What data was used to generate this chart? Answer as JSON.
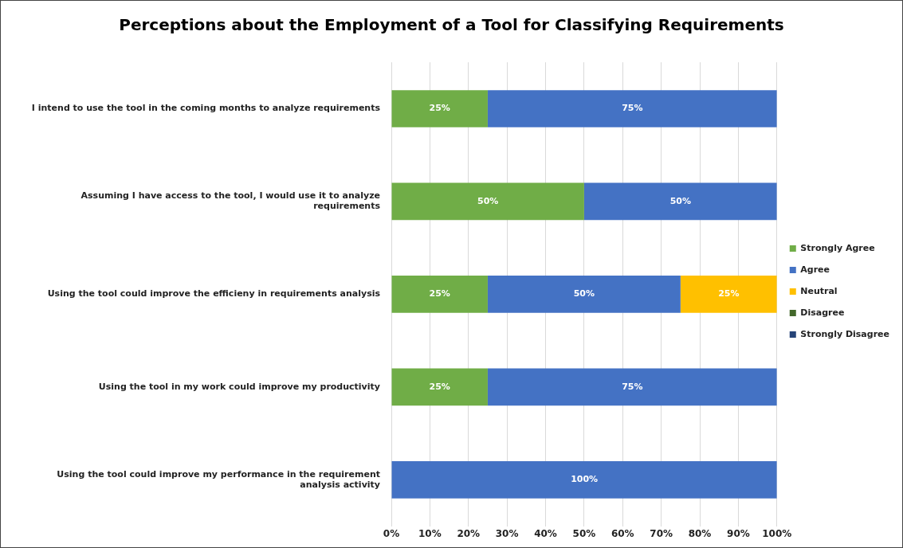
{
  "chart_data": {
    "type": "bar",
    "title": "Perceptions about the Employment of a Tool for Classifying Requirements",
    "orientation": "horizontal",
    "stacked": true,
    "grid": "x",
    "legend": "right",
    "categories": [
      "I intend to use the tool in the coming months to analyze requirements",
      "Assuming I have access to the tool, I would use it to analyze requirements",
      "Using the tool could improve the efficieny in requirements analysis",
      "Using the tool in my work could improve my productivity",
      "Using the tool could improve my performance in the requirement analysis activity"
    ],
    "series": [
      {
        "name": "Strongly Agree",
        "color": "#70ad47",
        "values": [
          25,
          50,
          25,
          25,
          0
        ],
        "value_labels": [
          "25%",
          "50%",
          "25%",
          "25%",
          null
        ]
      },
      {
        "name": "Agree",
        "color": "#4472c4",
        "values": [
          75,
          50,
          50,
          75,
          100
        ],
        "value_labels": [
          "75%",
          "50%",
          "50%",
          "75%",
          "100%"
        ]
      },
      {
        "name": "Neutral",
        "color": "#ffc000",
        "values": [
          0,
          0,
          25,
          0,
          0
        ],
        "value_labels": [
          null,
          null,
          "25%",
          null,
          null
        ]
      },
      {
        "name": "Disagree",
        "color": "#43682b",
        "values": [
          0,
          0,
          0,
          0,
          0
        ],
        "value_labels": [
          null,
          null,
          null,
          null,
          null
        ]
      },
      {
        "name": "Strongly Disagree",
        "color": "#264478",
        "values": [
          0,
          0,
          0,
          0,
          0
        ],
        "value_labels": [
          null,
          null,
          null,
          null,
          null
        ]
      }
    ],
    "xlim": [
      0,
      100
    ],
    "xticks": [
      {
        "value": 0,
        "label": "0%"
      },
      {
        "value": 10,
        "label": "10%"
      },
      {
        "value": 20,
        "label": "20%"
      },
      {
        "value": 30,
        "label": "30%"
      },
      {
        "value": 40,
        "label": "40%"
      },
      {
        "value": 50,
        "label": "50%"
      },
      {
        "value": 60,
        "label": "60%"
      },
      {
        "value": 70,
        "label": "70%"
      },
      {
        "value": 80,
        "label": "80%"
      },
      {
        "value": 90,
        "label": "90%"
      },
      {
        "value": 100,
        "label": "100%"
      }
    ]
  }
}
